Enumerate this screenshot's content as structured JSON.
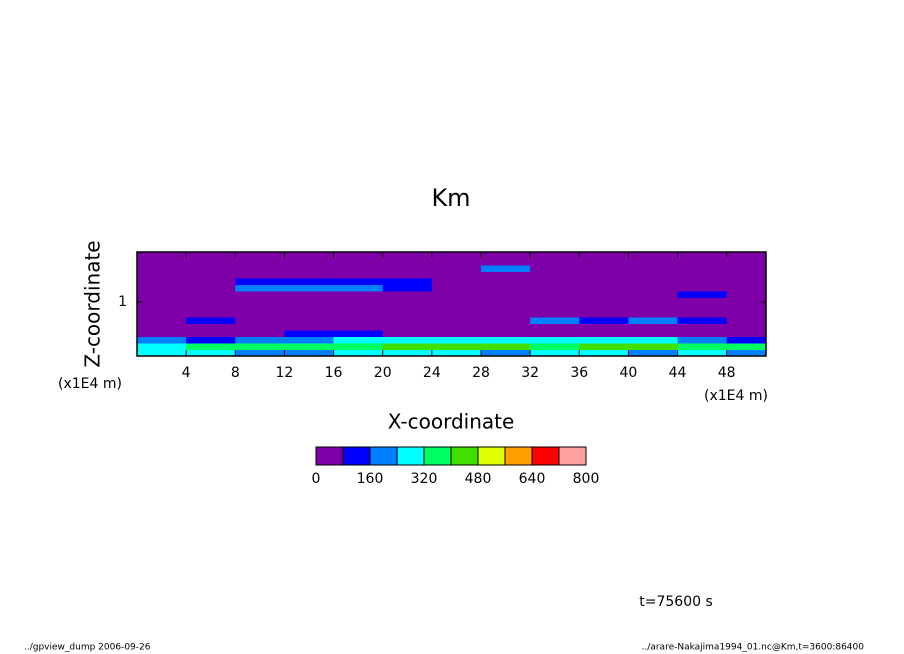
{
  "chart_data": {
    "type": "contour",
    "title": "Km",
    "x_label": "X-coordinate",
    "y_label": "Z-coordinate",
    "x_unit": "(x1E4 m)",
    "y_unit": "(x1E4 m)",
    "time_label": "t=75600 s",
    "footer_left": "../gpview_dump  2006-09-26",
    "footer_right": "../arare-Nakajima1994_01.nc@Km,t=3600:86400",
    "xlim": [
      0,
      51.2
    ],
    "ylim": [
      0,
      1.92
    ],
    "xticks": [
      4,
      8,
      12,
      16,
      20,
      24,
      28,
      32,
      36,
      40,
      44,
      48
    ],
    "yticks": [
      1
    ],
    "x": [
      2,
      6,
      10,
      14,
      18,
      22,
      26,
      30,
      34,
      38,
      42,
      46,
      50
    ],
    "y": [
      0.06,
      0.18,
      0.3,
      0.42,
      0.54,
      0.66,
      0.78,
      0.9,
      1.02,
      1.14,
      1.26,
      1.38,
      1.5,
      1.62,
      1.74,
      1.86
    ],
    "values": [
      [
        250,
        240,
        200,
        230,
        260,
        280,
        250,
        220,
        260,
        240,
        230,
        250,
        220
      ],
      [
        300,
        320,
        330,
        360,
        380,
        400,
        420,
        400,
        390,
        420,
        400,
        380,
        330
      ],
      [
        170,
        150,
        200,
        230,
        260,
        280,
        300,
        260,
        280,
        300,
        240,
        200,
        150
      ],
      [
        40,
        40,
        60,
        90,
        100,
        60,
        50,
        60,
        40,
        40,
        40,
        40,
        40
      ],
      [
        40,
        40,
        40,
        40,
        40,
        40,
        40,
        40,
        40,
        40,
        40,
        40,
        40
      ],
      [
        40,
        150,
        40,
        40,
        40,
        40,
        40,
        60,
        170,
        130,
        200,
        150,
        40
      ],
      [
        40,
        40,
        40,
        40,
        40,
        40,
        40,
        40,
        40,
        40,
        40,
        40,
        40
      ],
      [
        40,
        40,
        40,
        40,
        40,
        40,
        40,
        40,
        40,
        40,
        40,
        40,
        40
      ],
      [
        40,
        40,
        40,
        40,
        40,
        40,
        40,
        40,
        40,
        40,
        40,
        40,
        40
      ],
      [
        40,
        40,
        40,
        40,
        40,
        40,
        40,
        40,
        40,
        40,
        40,
        120,
        40
      ],
      [
        40,
        40,
        200,
        180,
        220,
        130,
        40,
        40,
        40,
        40,
        40,
        40,
        40
      ],
      [
        40,
        40,
        150,
        120,
        100,
        130,
        40,
        40,
        40,
        40,
        40,
        40,
        40
      ],
      [
        40,
        40,
        40,
        40,
        40,
        40,
        40,
        40,
        40,
        40,
        40,
        40,
        40
      ],
      [
        40,
        40,
        40,
        40,
        40,
        40,
        40,
        200,
        40,
        40,
        40,
        40,
        40
      ],
      [
        40,
        40,
        40,
        40,
        40,
        40,
        40,
        40,
        40,
        40,
        40,
        40,
        40
      ],
      [
        40,
        40,
        40,
        40,
        40,
        40,
        40,
        40,
        40,
        40,
        40,
        40,
        40
      ]
    ],
    "levels": [
      0,
      80,
      160,
      240,
      320,
      400,
      480,
      560,
      640,
      720,
      800
    ],
    "colors": [
      "#7f00a8",
      "#0000ff",
      "#0080ff",
      "#00ffff",
      "#00ff60",
      "#40e000",
      "#e0ff00",
      "#ff9f00",
      "#ff0000",
      "#ff9f9f"
    ],
    "colorbar_ticks": [
      0,
      160,
      320,
      480,
      640,
      800
    ]
  }
}
